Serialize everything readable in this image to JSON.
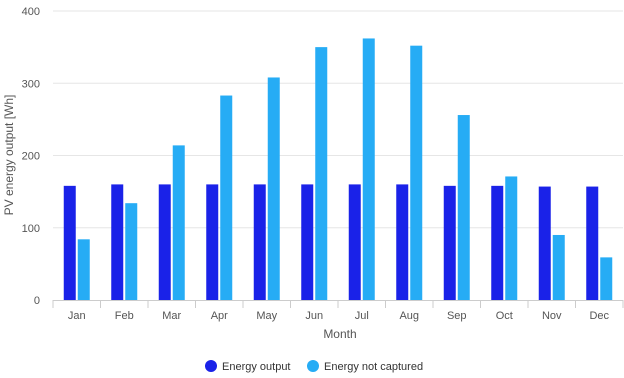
{
  "chart_data": {
    "type": "bar",
    "title": "",
    "xlabel": "Month",
    "ylabel": "PV energy output [Wh]",
    "ylim": [
      0,
      400
    ],
    "yticks": [
      0,
      100,
      200,
      300,
      400
    ],
    "grid": true,
    "legend_position": "bottom-center",
    "categories": [
      "Jan",
      "Feb",
      "Mar",
      "Apr",
      "May",
      "Jun",
      "Jul",
      "Aug",
      "Sep",
      "Oct",
      "Nov",
      "Dec"
    ],
    "series": [
      {
        "name": "Energy output",
        "color": "#1a22e8",
        "values": [
          158,
          160,
          160,
          160,
          160,
          160,
          160,
          160,
          158,
          158,
          157,
          157
        ]
      },
      {
        "name": "Energy not captured",
        "color": "#26acf5",
        "values": [
          84,
          134,
          214,
          283,
          308,
          350,
          362,
          352,
          256,
          171,
          90,
          59
        ]
      }
    ]
  }
}
